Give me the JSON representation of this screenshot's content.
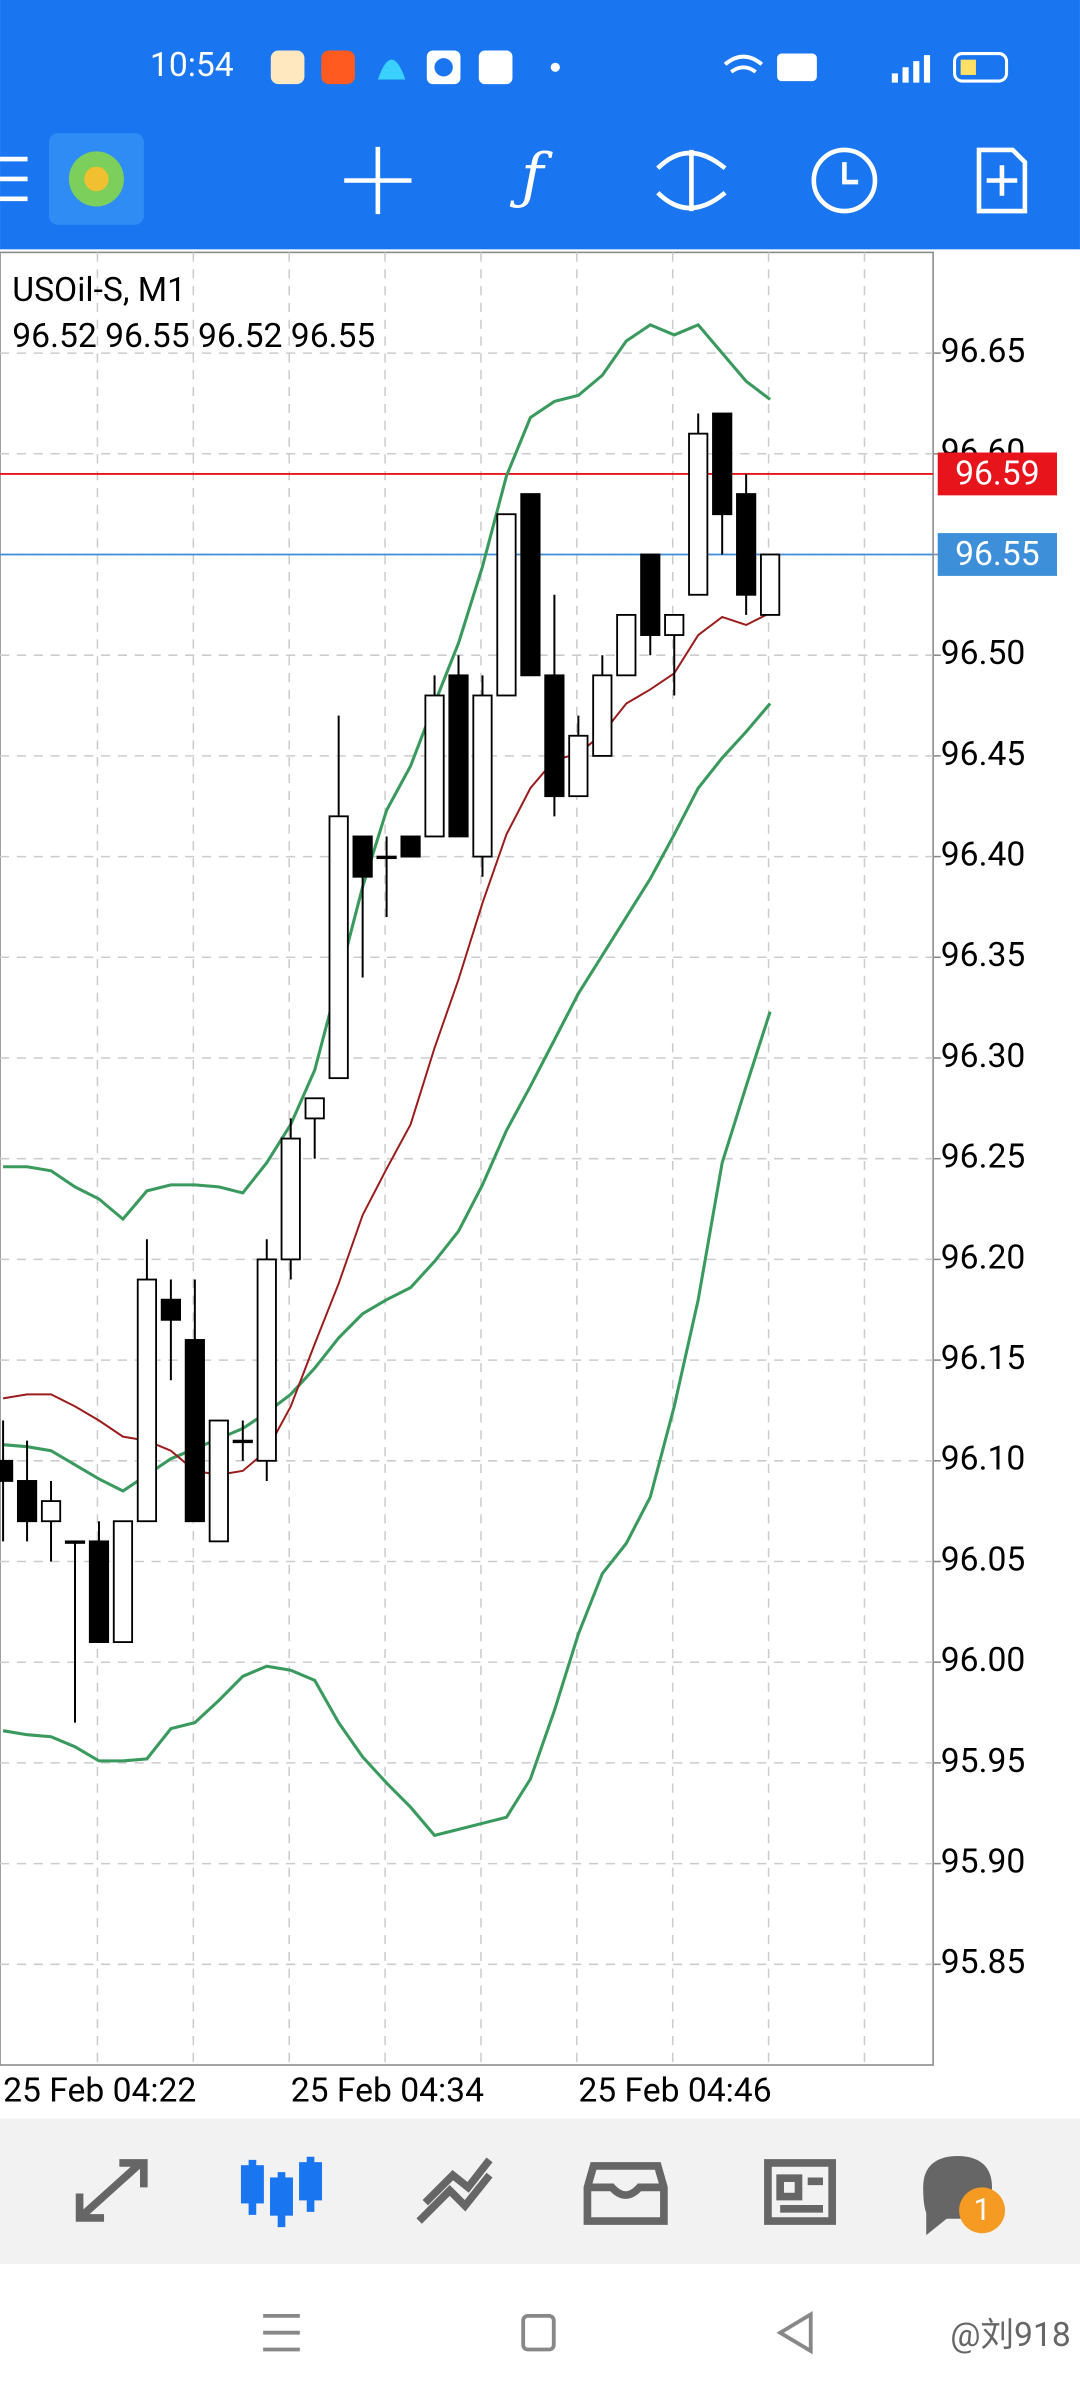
{
  "status_bar": {
    "time": "10:54"
  },
  "chart_data": {
    "type": "candlestick",
    "title": "USOil-S, M1",
    "subtitle": "96.52 96.55 96.52 96.55",
    "categories": [
      "25 Feb 04:22",
      null,
      null,
      null,
      null,
      null,
      null,
      null,
      null,
      null,
      null,
      null,
      "25 Feb 04:34",
      null,
      null,
      null,
      null,
      null,
      null,
      null,
      null,
      null,
      null,
      null,
      "25 Feb 04:46",
      null,
      null,
      null,
      null,
      null,
      null,
      null,
      null
    ],
    "open": [
      96.1,
      96.09,
      96.07,
      96.06,
      96.06,
      96.01,
      96.07,
      96.18,
      96.16,
      96.06,
      96.11,
      96.1,
      96.2,
      96.27,
      96.29,
      96.41,
      96.4,
      96.41,
      96.41,
      96.49,
      96.4,
      96.48,
      96.58,
      96.49,
      96.43,
      96.45,
      96.49,
      96.55,
      96.51,
      96.53,
      96.62,
      96.58,
      96.52
    ],
    "high": [
      96.12,
      96.11,
      96.09,
      96.06,
      96.07,
      96.07,
      96.21,
      96.19,
      96.19,
      96.12,
      96.12,
      96.21,
      96.27,
      96.28,
      96.47,
      96.41,
      96.41,
      96.41,
      96.49,
      96.5,
      96.49,
      96.57,
      96.58,
      96.53,
      96.47,
      96.5,
      96.52,
      96.55,
      96.52,
      96.62,
      96.62,
      96.59,
      96.55
    ],
    "low": [
      96.06,
      96.06,
      96.05,
      95.97,
      96.01,
      96.01,
      96.07,
      96.14,
      96.07,
      96.06,
      96.1,
      96.09,
      96.19,
      96.25,
      96.29,
      96.34,
      96.37,
      96.4,
      96.41,
      96.41,
      96.39,
      96.48,
      96.49,
      96.42,
      96.43,
      96.45,
      96.49,
      96.5,
      96.48,
      96.53,
      96.55,
      96.52,
      96.52
    ],
    "close": [
      96.09,
      96.07,
      96.08,
      96.06,
      96.01,
      96.07,
      96.19,
      96.17,
      96.07,
      96.12,
      96.11,
      96.2,
      96.26,
      96.28,
      96.42,
      96.39,
      96.4,
      96.4,
      96.48,
      96.41,
      96.48,
      96.57,
      96.49,
      96.43,
      96.46,
      96.49,
      96.52,
      96.51,
      96.52,
      96.61,
      96.57,
      96.53,
      96.55
    ],
    "up_color": "#ffffff",
    "down_color": "#000000",
    "lines": [
      {
        "color": "#3a9a5e",
        "values": [
          96.246,
          96.246,
          96.244,
          96.236,
          96.23,
          96.22,
          96.234,
          96.237,
          96.237,
          96.236,
          96.233,
          96.248,
          96.267,
          96.294,
          96.339,
          96.385,
          96.423,
          96.445,
          96.476,
          96.506,
          96.544,
          96.589,
          96.618,
          96.626,
          96.629,
          96.639,
          96.656,
          96.664,
          96.659,
          96.664,
          96.65,
          96.636,
          96.627
        ]
      },
      {
        "color": "#3a9a5e",
        "values": [
          96.108,
          96.107,
          96.105,
          96.098,
          96.091,
          96.085,
          96.093,
          96.101,
          96.106,
          96.111,
          96.116,
          96.124,
          96.133,
          96.146,
          96.161,
          96.173,
          96.18,
          96.186,
          96.199,
          96.214,
          96.237,
          96.264,
          96.286,
          96.309,
          96.332,
          96.351,
          96.37,
          96.389,
          96.411,
          96.434,
          96.449,
          96.462,
          96.476
        ]
      },
      {
        "color": "#3a9a5e",
        "values": [
          95.966,
          95.964,
          95.963,
          95.958,
          95.951,
          95.951,
          95.952,
          95.967,
          95.97,
          95.981,
          95.993,
          95.998,
          95.996,
          95.991,
          95.97,
          95.953,
          95.94,
          95.928,
          95.914,
          95.917,
          95.92,
          95.923,
          95.942,
          95.976,
          96.014,
          96.044,
          96.059,
          96.082,
          96.127,
          96.18,
          96.248,
          96.286,
          96.323
        ]
      },
      {
        "color": "#9b1c1c",
        "values": [
          96.131,
          96.133,
          96.133,
          96.127,
          96.12,
          96.112,
          96.11,
          96.105,
          96.095,
          96.093,
          96.095,
          96.105,
          96.127,
          96.158,
          96.188,
          96.222,
          96.245,
          96.267,
          96.305,
          96.339,
          96.377,
          96.411,
          96.434,
          96.448,
          96.451,
          96.461,
          96.476,
          96.483,
          96.491,
          96.51,
          96.519,
          96.515,
          96.521
        ]
      }
    ],
    "hlines": [
      {
        "value": 96.59,
        "color": "#e8141b"
      },
      {
        "value": 96.55,
        "color": "#3d8fd9"
      }
    ],
    "ylim": [
      95.8,
      96.7
    ],
    "yticks": [
      95.85,
      {
        "value": 95.9,
        "label": "95.90"
      },
      95.95,
      {
        "value": 96.0,
        "label": "96.00"
      },
      96.05,
      {
        "value": 96.1,
        "label": "96.10"
      },
      96.15,
      {
        "value": 96.2,
        "label": "96.20"
      },
      96.25,
      {
        "value": 96.3,
        "label": "96.30"
      },
      96.35,
      {
        "value": 96.4,
        "label": "96.40"
      },
      96.45,
      {
        "value": 96.5,
        "label": "96.50"
      },
      96.55,
      {
        "value": 96.6,
        "label": "96.60"
      },
      96.65
    ],
    "grid": true
  },
  "bottom_nav": {
    "badge": "1"
  },
  "watermark": "@刘918"
}
